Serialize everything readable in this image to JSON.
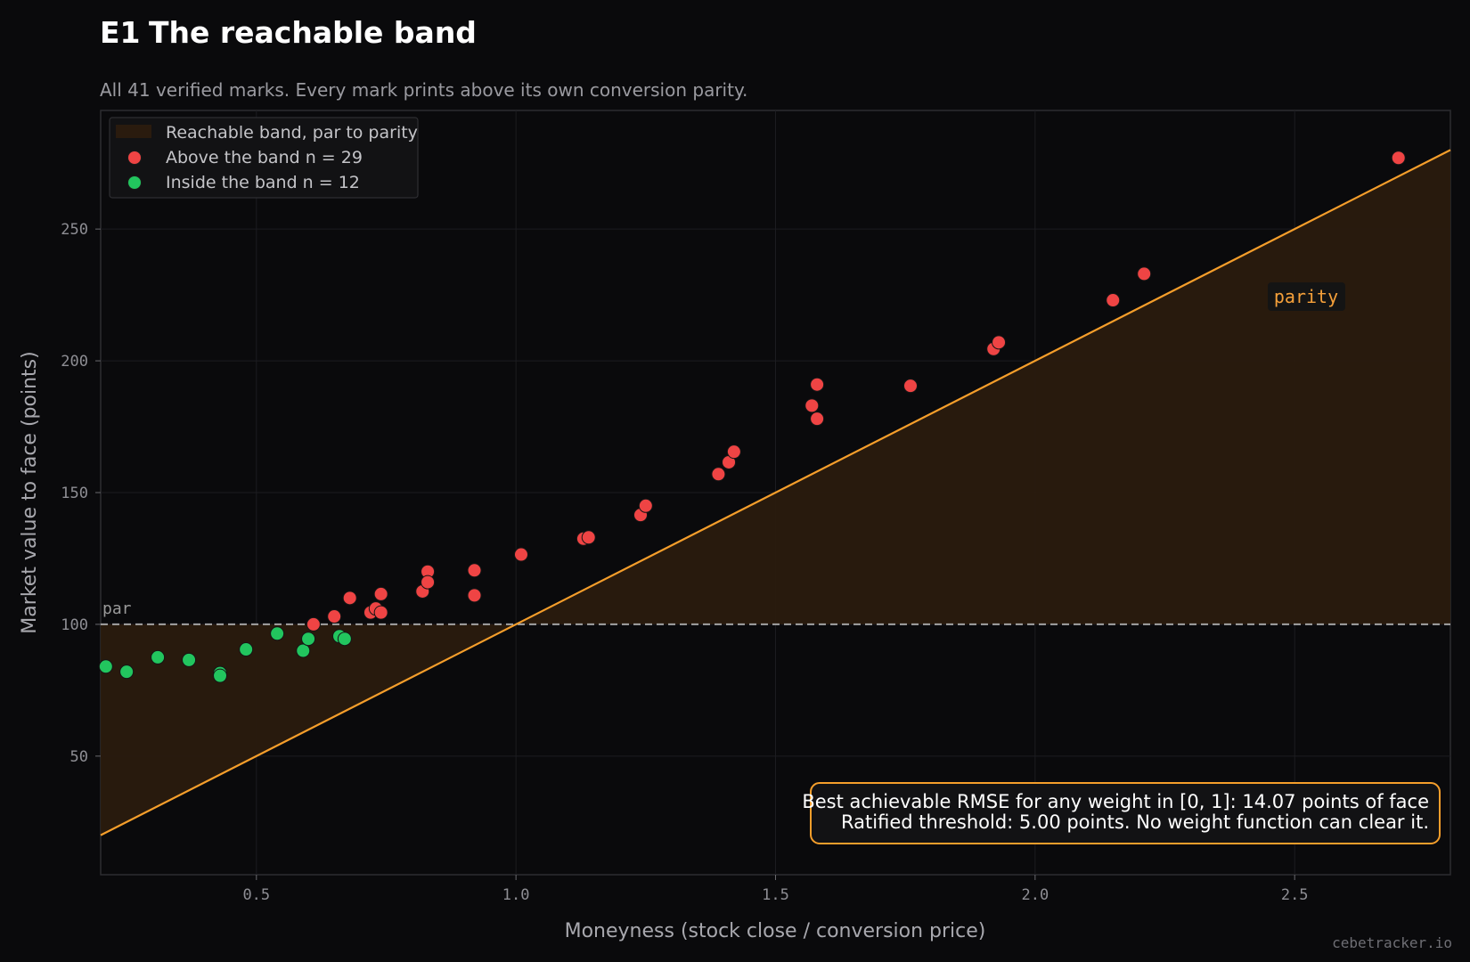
{
  "header": {
    "tag": "E1",
    "title": "The reachable band",
    "subtitle": "All 41 verified marks. Every mark prints above its own conversion parity."
  },
  "chart_data": {
    "type": "scatter",
    "xlabel": "Moneyness  (stock close / conversion price)",
    "ylabel": "Market value to face  (points)",
    "xlim": [
      0.2,
      2.8
    ],
    "ylim": [
      5,
      295
    ],
    "xticks": [
      0.5,
      1.0,
      1.5,
      2.0,
      2.5
    ],
    "xtick_labels": [
      "0.5",
      "1.0",
      "1.5",
      "2.0",
      "2.5"
    ],
    "yticks": [
      50,
      100,
      150,
      200,
      250
    ],
    "ytick_labels": [
      "50",
      "100",
      "150",
      "200",
      "250"
    ],
    "grid": true,
    "legend_position": "top-left",
    "legend": [
      {
        "label": "Reachable band, par to parity",
        "kind": "band",
        "color": "#2a1b0e"
      },
      {
        "label": "Above the band  n = 29",
        "kind": "point",
        "color": "#ef4444"
      },
      {
        "label": "Inside the band  n = 12",
        "kind": "point",
        "color": "#22c55e"
      }
    ],
    "reference_lines": [
      {
        "name": "par",
        "label": "par",
        "type": "horizontal",
        "y": 100,
        "color": "#a3a3a3",
        "style": "dashed"
      },
      {
        "name": "parity",
        "label": "parity",
        "type": "line",
        "equation": "y = 100 * x",
        "color": "#f59e2b"
      }
    ],
    "band": {
      "between": [
        "par",
        "parity"
      ],
      "color": "#2a1b0e"
    },
    "series": [
      {
        "name": "Above the band  n = 29",
        "color": "#ef4444",
        "points": [
          [
            0.61,
            100
          ],
          [
            0.65,
            103
          ],
          [
            0.68,
            110
          ],
          [
            0.72,
            104.5
          ],
          [
            0.73,
            106
          ],
          [
            0.74,
            104.5
          ],
          [
            0.74,
            111.5
          ],
          [
            0.82,
            112.5
          ],
          [
            0.83,
            120
          ],
          [
            0.83,
            116
          ],
          [
            0.92,
            120.5
          ],
          [
            0.92,
            111
          ],
          [
            1.01,
            126.5
          ],
          [
            1.13,
            132.5
          ],
          [
            1.14,
            133
          ],
          [
            1.24,
            141.5
          ],
          [
            1.25,
            145
          ],
          [
            1.39,
            157
          ],
          [
            1.41,
            161.5
          ],
          [
            1.42,
            165.5
          ],
          [
            1.57,
            183
          ],
          [
            1.58,
            178
          ],
          [
            1.58,
            191
          ],
          [
            1.76,
            190.5
          ],
          [
            1.92,
            204.5
          ],
          [
            1.93,
            207
          ],
          [
            2.15,
            223
          ],
          [
            2.21,
            233
          ],
          [
            2.7,
            277
          ]
        ]
      },
      {
        "name": "Inside the band  n = 12",
        "color": "#22c55e",
        "points": [
          [
            0.21,
            84
          ],
          [
            0.25,
            82
          ],
          [
            0.31,
            87.5
          ],
          [
            0.37,
            86.5
          ],
          [
            0.43,
            81.5
          ],
          [
            0.43,
            80.5
          ],
          [
            0.48,
            90.5
          ],
          [
            0.54,
            96.5
          ],
          [
            0.59,
            90
          ],
          [
            0.6,
            94.5
          ],
          [
            0.66,
            95.5
          ],
          [
            0.67,
            94.5
          ]
        ]
      }
    ],
    "annotation": [
      "Best achievable RMSE for any weight in [0, 1]: 14.07 points of face",
      "Ratified threshold: 5.00 points.  No weight function can clear it."
    ]
  },
  "footer": {
    "credit": "cebetracker.io"
  }
}
